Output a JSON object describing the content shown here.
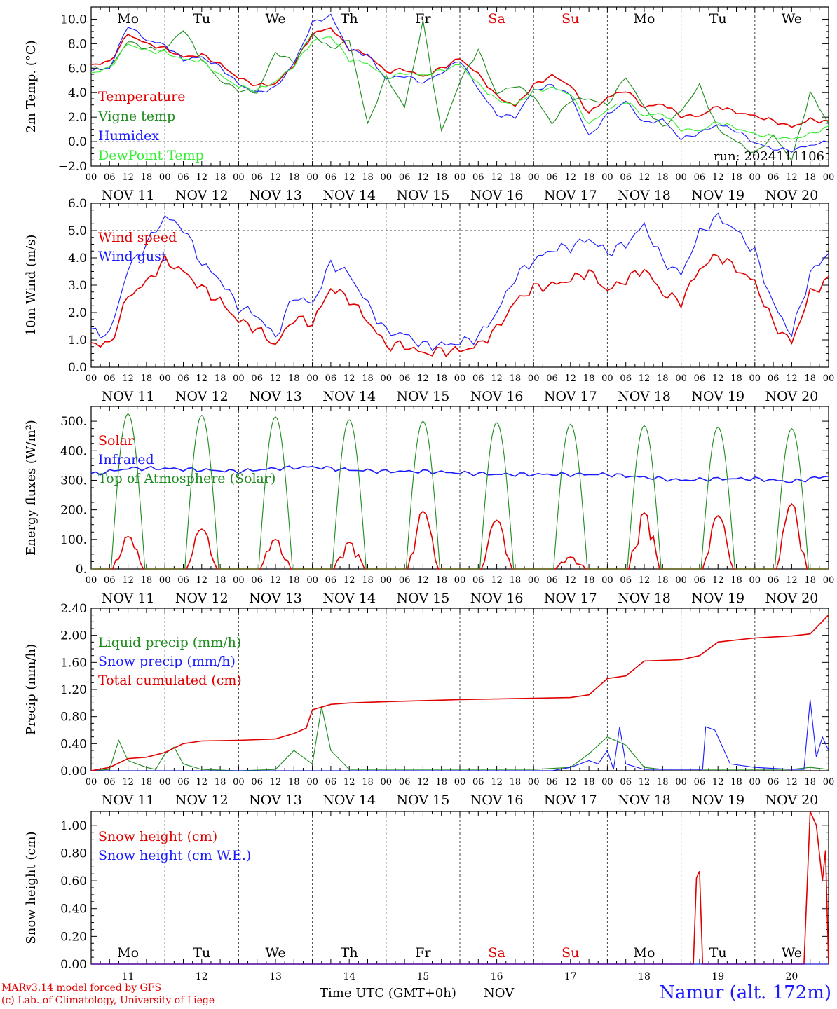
{
  "run_label": "run: 2024111106",
  "day_labels": [
    "Mo",
    "Tu",
    "We",
    "Th",
    "Fr",
    "Sa",
    "Su",
    "Mo",
    "Tu",
    "We"
  ],
  "weekend_days": [
    "Sa",
    "Su"
  ],
  "date_labels": [
    "NOV 11",
    "NOV 12",
    "NOV 13",
    "NOV 14",
    "NOV 15",
    "NOV 16",
    "NOV 17",
    "NOV 18",
    "NOV 19",
    "NOV 20"
  ],
  "hour_ticks": [
    "00",
    "06",
    "12",
    "18"
  ],
  "bottom_day_numbers": [
    "11",
    "12",
    "13",
    "14",
    "15",
    "16",
    "17",
    "18",
    "19",
    "20"
  ],
  "footer": {
    "model": "MARv3.14 model forced by GFS",
    "credit": "(c) Lab. of Climatology, University of Liege",
    "xlabel": "Time UTC (GMT+0h)",
    "month": "NOV",
    "station": "Namur (alt. 172m)"
  },
  "colors": {
    "red": "#e00000",
    "green": "#1e8c1e",
    "blue": "#1a1aff",
    "lightgreen": "#33ee33",
    "grid": "#444444"
  },
  "chart_data": [
    {
      "type": "line",
      "ylabel": "2m Temp. (°C)",
      "ylim": [
        -2,
        11
      ],
      "yticks": [
        -2,
        0,
        2,
        4,
        6,
        8,
        10
      ],
      "ytick_labels": [
        "−2.0",
        "0.0",
        "2.0",
        "4.0",
        "6.0",
        "8.0",
        "10.0"
      ],
      "dashed_y": [
        0
      ],
      "x_hours": [
        0,
        6,
        12,
        18,
        24,
        30,
        36,
        42,
        48,
        54,
        60,
        66,
        72,
        78,
        84,
        90,
        96,
        102,
        108,
        114,
        120,
        126,
        132,
        138,
        144,
        150,
        156,
        162,
        168,
        174,
        180,
        186,
        192,
        198,
        204,
        210,
        216,
        222,
        228,
        234,
        240
      ],
      "series": [
        {
          "name": "Temperature",
          "color": "red",
          "values": [
            6.3,
            6.5,
            8.8,
            8.0,
            7.6,
            6.9,
            7.1,
            6.3,
            5.2,
            4.6,
            4.7,
            6.3,
            8.8,
            9.3,
            7.6,
            7.1,
            5.7,
            5.9,
            5.3,
            6.0,
            6.8,
            5.5,
            3.7,
            2.9,
            4.6,
            5.4,
            4.6,
            2.3,
            3.6,
            4.2,
            2.8,
            3.1,
            2.1,
            2.1,
            2.9,
            2.4,
            2.1,
            1.7,
            1.2,
            1.8,
            1.6
          ]
        },
        {
          "name": "Vigne temp",
          "color": "green",
          "values": [
            6.0,
            6.0,
            8.2,
            7.6,
            7.5,
            9.2,
            6.7,
            5.0,
            4.2,
            4.0,
            7.3,
            6.5,
            8.8,
            7.6,
            8.3,
            1.4,
            5.3,
            2.8,
            9.8,
            0.8,
            4.9,
            7.5,
            3.9,
            4.6,
            3.7,
            1.5,
            3.4,
            3.5,
            3.0,
            5.3,
            2.8,
            1.2,
            2.5,
            4.6,
            1.0,
            0.0,
            -1.0,
            0.5,
            -1.5,
            4.0,
            1.5
          ]
        },
        {
          "name": "Humidex",
          "color": "blue",
          "values": [
            5.8,
            6.0,
            9.5,
            8.3,
            7.9,
            6.7,
            6.9,
            6.1,
            4.7,
            4.0,
            4.4,
            6.4,
            9.7,
            10.3,
            7.5,
            7.1,
            5.1,
            5.4,
            4.8,
            5.6,
            6.7,
            4.3,
            2.2,
            2.0,
            4.2,
            4.6,
            3.8,
            0.4,
            2.2,
            3.3,
            1.5,
            1.8,
            0.2,
            0.7,
            1.4,
            0.9,
            -0.1,
            -0.6,
            -0.7,
            -0.3,
            0.0
          ]
        },
        {
          "name": "DewPoint Temp",
          "color": "lightgreen",
          "values": [
            5.6,
            6.0,
            8.0,
            7.4,
            7.3,
            6.7,
            6.6,
            5.4,
            4.5,
            4.2,
            4.9,
            6.2,
            8.2,
            8.6,
            6.7,
            6.4,
            5.2,
            5.6,
            5.4,
            5.8,
            6.3,
            4.7,
            3.4,
            3.0,
            4.1,
            4.4,
            3.9,
            1.4,
            2.6,
            3.3,
            2.1,
            2.3,
            1.0,
            0.9,
            1.6,
            1.1,
            0.6,
            0.4,
            0.2,
            0.6,
            1.2
          ]
        }
      ]
    },
    {
      "type": "line",
      "ylabel": "10m Wind (m/s)",
      "ylim": [
        0,
        6
      ],
      "yticks": [
        0,
        1,
        2,
        3,
        4,
        5,
        6
      ],
      "ytick_labels": [
        "0.0",
        "1.0",
        "2.0",
        "3.0",
        "4.0",
        "5.0",
        "6.0"
      ],
      "dashed_y": [
        5
      ],
      "x_hours": [
        0,
        6,
        12,
        18,
        24,
        30,
        36,
        42,
        48,
        54,
        60,
        66,
        72,
        78,
        84,
        90,
        96,
        102,
        108,
        114,
        120,
        126,
        132,
        138,
        144,
        150,
        156,
        162,
        168,
        174,
        180,
        186,
        192,
        198,
        204,
        210,
        216,
        222,
        228,
        234,
        240
      ],
      "series": [
        {
          "name": "Wind speed",
          "color": "red",
          "values": [
            0.9,
            0.8,
            2.6,
            3.1,
            3.9,
            3.5,
            2.9,
            2.4,
            1.7,
            1.4,
            0.8,
            1.8,
            1.6,
            2.9,
            2.5,
            1.7,
            0.8,
            0.8,
            0.5,
            0.6,
            0.6,
            0.8,
            1.4,
            2.4,
            2.9,
            3.0,
            3.2,
            3.5,
            2.8,
            3.2,
            3.6,
            2.7,
            2.4,
            3.6,
            4.1,
            3.6,
            3.1,
            1.6,
            0.9,
            2.7,
            3.2
          ]
        },
        {
          "name": "Wind gust",
          "color": "blue",
          "values": [
            1.3,
            1.2,
            3.6,
            4.5,
            5.5,
            5.1,
            3.8,
            3.2,
            2.2,
            1.9,
            1.1,
            2.6,
            2.3,
            3.8,
            3.4,
            2.3,
            1.3,
            1.2,
            0.8,
            0.8,
            0.9,
            1.1,
            2.0,
            3.3,
            3.9,
            4.3,
            4.4,
            4.7,
            4.2,
            4.5,
            5.2,
            3.9,
            3.4,
            4.9,
            5.5,
            5.0,
            4.2,
            2.3,
            1.2,
            3.4,
            4.2
          ]
        }
      ]
    },
    {
      "type": "line",
      "ylabel": "Energy fluxes (W/m²)",
      "ylim": [
        0,
        550
      ],
      "yticks": [
        0,
        100,
        200,
        300,
        400,
        500
      ],
      "ytick_labels": [
        "0.",
        "100.",
        "200.",
        "300.",
        "400.",
        "500."
      ],
      "dashed_y": [],
      "series": [
        {
          "name": "Solar",
          "color": "red",
          "peaks": [
            110,
            135,
            100,
            90,
            195,
            165,
            40,
            190,
            180,
            220
          ]
        },
        {
          "name": "Infrared",
          "color": "blue",
          "x_hours": [
            0,
            12,
            24,
            36,
            48,
            60,
            72,
            84,
            96,
            108,
            120,
            132,
            144,
            156,
            168,
            180,
            192,
            204,
            216,
            228,
            240
          ],
          "values": [
            320,
            340,
            340,
            335,
            330,
            340,
            345,
            335,
            330,
            330,
            325,
            320,
            320,
            320,
            320,
            310,
            300,
            305,
            305,
            295,
            315
          ]
        },
        {
          "name": "Top of Atmosphere (Solar)",
          "color": "green",
          "peaks": [
            525,
            520,
            515,
            505,
            500,
            495,
            490,
            485,
            480,
            475
          ]
        }
      ]
    },
    {
      "type": "line",
      "ylabel": "Precip (mm/h)",
      "ylim": [
        0,
        2.4
      ],
      "yticks": [
        0,
        0.4,
        0.8,
        1.2,
        1.6,
        2.0,
        2.4
      ],
      "ytick_labels": [
        "0.00",
        "0.40",
        "0.80",
        "1.20",
        "1.60",
        "2.00",
        "2.40"
      ],
      "dashed_y": [],
      "series": [
        {
          "name": "Liquid precip (mm/h)",
          "color": "green",
          "x_hours": [
            0,
            6,
            9,
            12,
            18,
            21,
            24,
            27,
            30,
            36,
            48,
            60,
            66,
            72,
            75,
            78,
            84,
            96,
            120,
            144,
            156,
            162,
            168,
            174,
            180,
            186,
            192,
            204,
            216,
            228,
            234,
            240
          ],
          "values": [
            0,
            0.02,
            0.45,
            0.15,
            0.05,
            0.02,
            0.25,
            0.35,
            0.1,
            0.02,
            0,
            0.02,
            0.3,
            0.1,
            0.95,
            0.3,
            0.02,
            0.02,
            0.02,
            0.02,
            0.05,
            0.25,
            0.5,
            0.38,
            0.05,
            0.02,
            0.02,
            0.02,
            0.02,
            0.02,
            0.05,
            0.02
          ]
        },
        {
          "name": "Snow precip (mm/h)",
          "color": "blue",
          "x_hours": [
            0,
            150,
            156,
            162,
            165,
            168,
            170,
            172,
            174,
            180,
            186,
            192,
            199,
            200,
            203,
            208,
            216,
            228,
            232,
            234,
            236,
            238,
            240
          ],
          "values": [
            0,
            0,
            0.05,
            0.15,
            0.1,
            0.3,
            0.02,
            0.65,
            0.1,
            0.02,
            0.02,
            0.02,
            0.02,
            0.65,
            0.6,
            0.1,
            0.05,
            0.02,
            0.02,
            1.05,
            0.2,
            0.5,
            0.3
          ]
        },
        {
          "name": "Total cumulated (cm)",
          "color": "red",
          "x_hours": [
            0,
            6,
            12,
            18,
            24,
            30,
            36,
            48,
            60,
            66,
            70,
            72,
            78,
            84,
            96,
            120,
            144,
            156,
            162,
            168,
            174,
            180,
            192,
            198,
            204,
            216,
            228,
            234,
            240
          ],
          "values": [
            0,
            0.05,
            0.18,
            0.2,
            0.27,
            0.4,
            0.44,
            0.45,
            0.47,
            0.55,
            0.63,
            0.9,
            0.98,
            1.0,
            1.02,
            1.05,
            1.07,
            1.08,
            1.12,
            1.36,
            1.4,
            1.62,
            1.64,
            1.7,
            1.9,
            1.96,
            1.99,
            2.02,
            2.3
          ]
        }
      ]
    },
    {
      "type": "line",
      "ylabel": "Snow height (cm)",
      "ylim": [
        0,
        1.1
      ],
      "yticks": [
        0,
        0.2,
        0.4,
        0.6,
        0.8,
        1.0
      ],
      "ytick_labels": [
        "0.00",
        "0.20",
        "0.40",
        "0.60",
        "0.80",
        "1.00"
      ],
      "dashed_y": [],
      "series": [
        {
          "name": "Snow height (cm)",
          "color": "red",
          "x_hours": [
            0,
            196,
            197,
            198,
            199,
            200,
            232,
            234,
            236,
            238,
            239,
            240
          ],
          "values": [
            0,
            0,
            0.62,
            0.67,
            0,
            0,
            0,
            1.1,
            1.0,
            0.6,
            0.82,
            0
          ]
        },
        {
          "name": "Snow height (cm W.E.)",
          "color": "blue",
          "x_hours": [
            0,
            240
          ],
          "values": [
            0,
            0
          ]
        }
      ]
    }
  ]
}
